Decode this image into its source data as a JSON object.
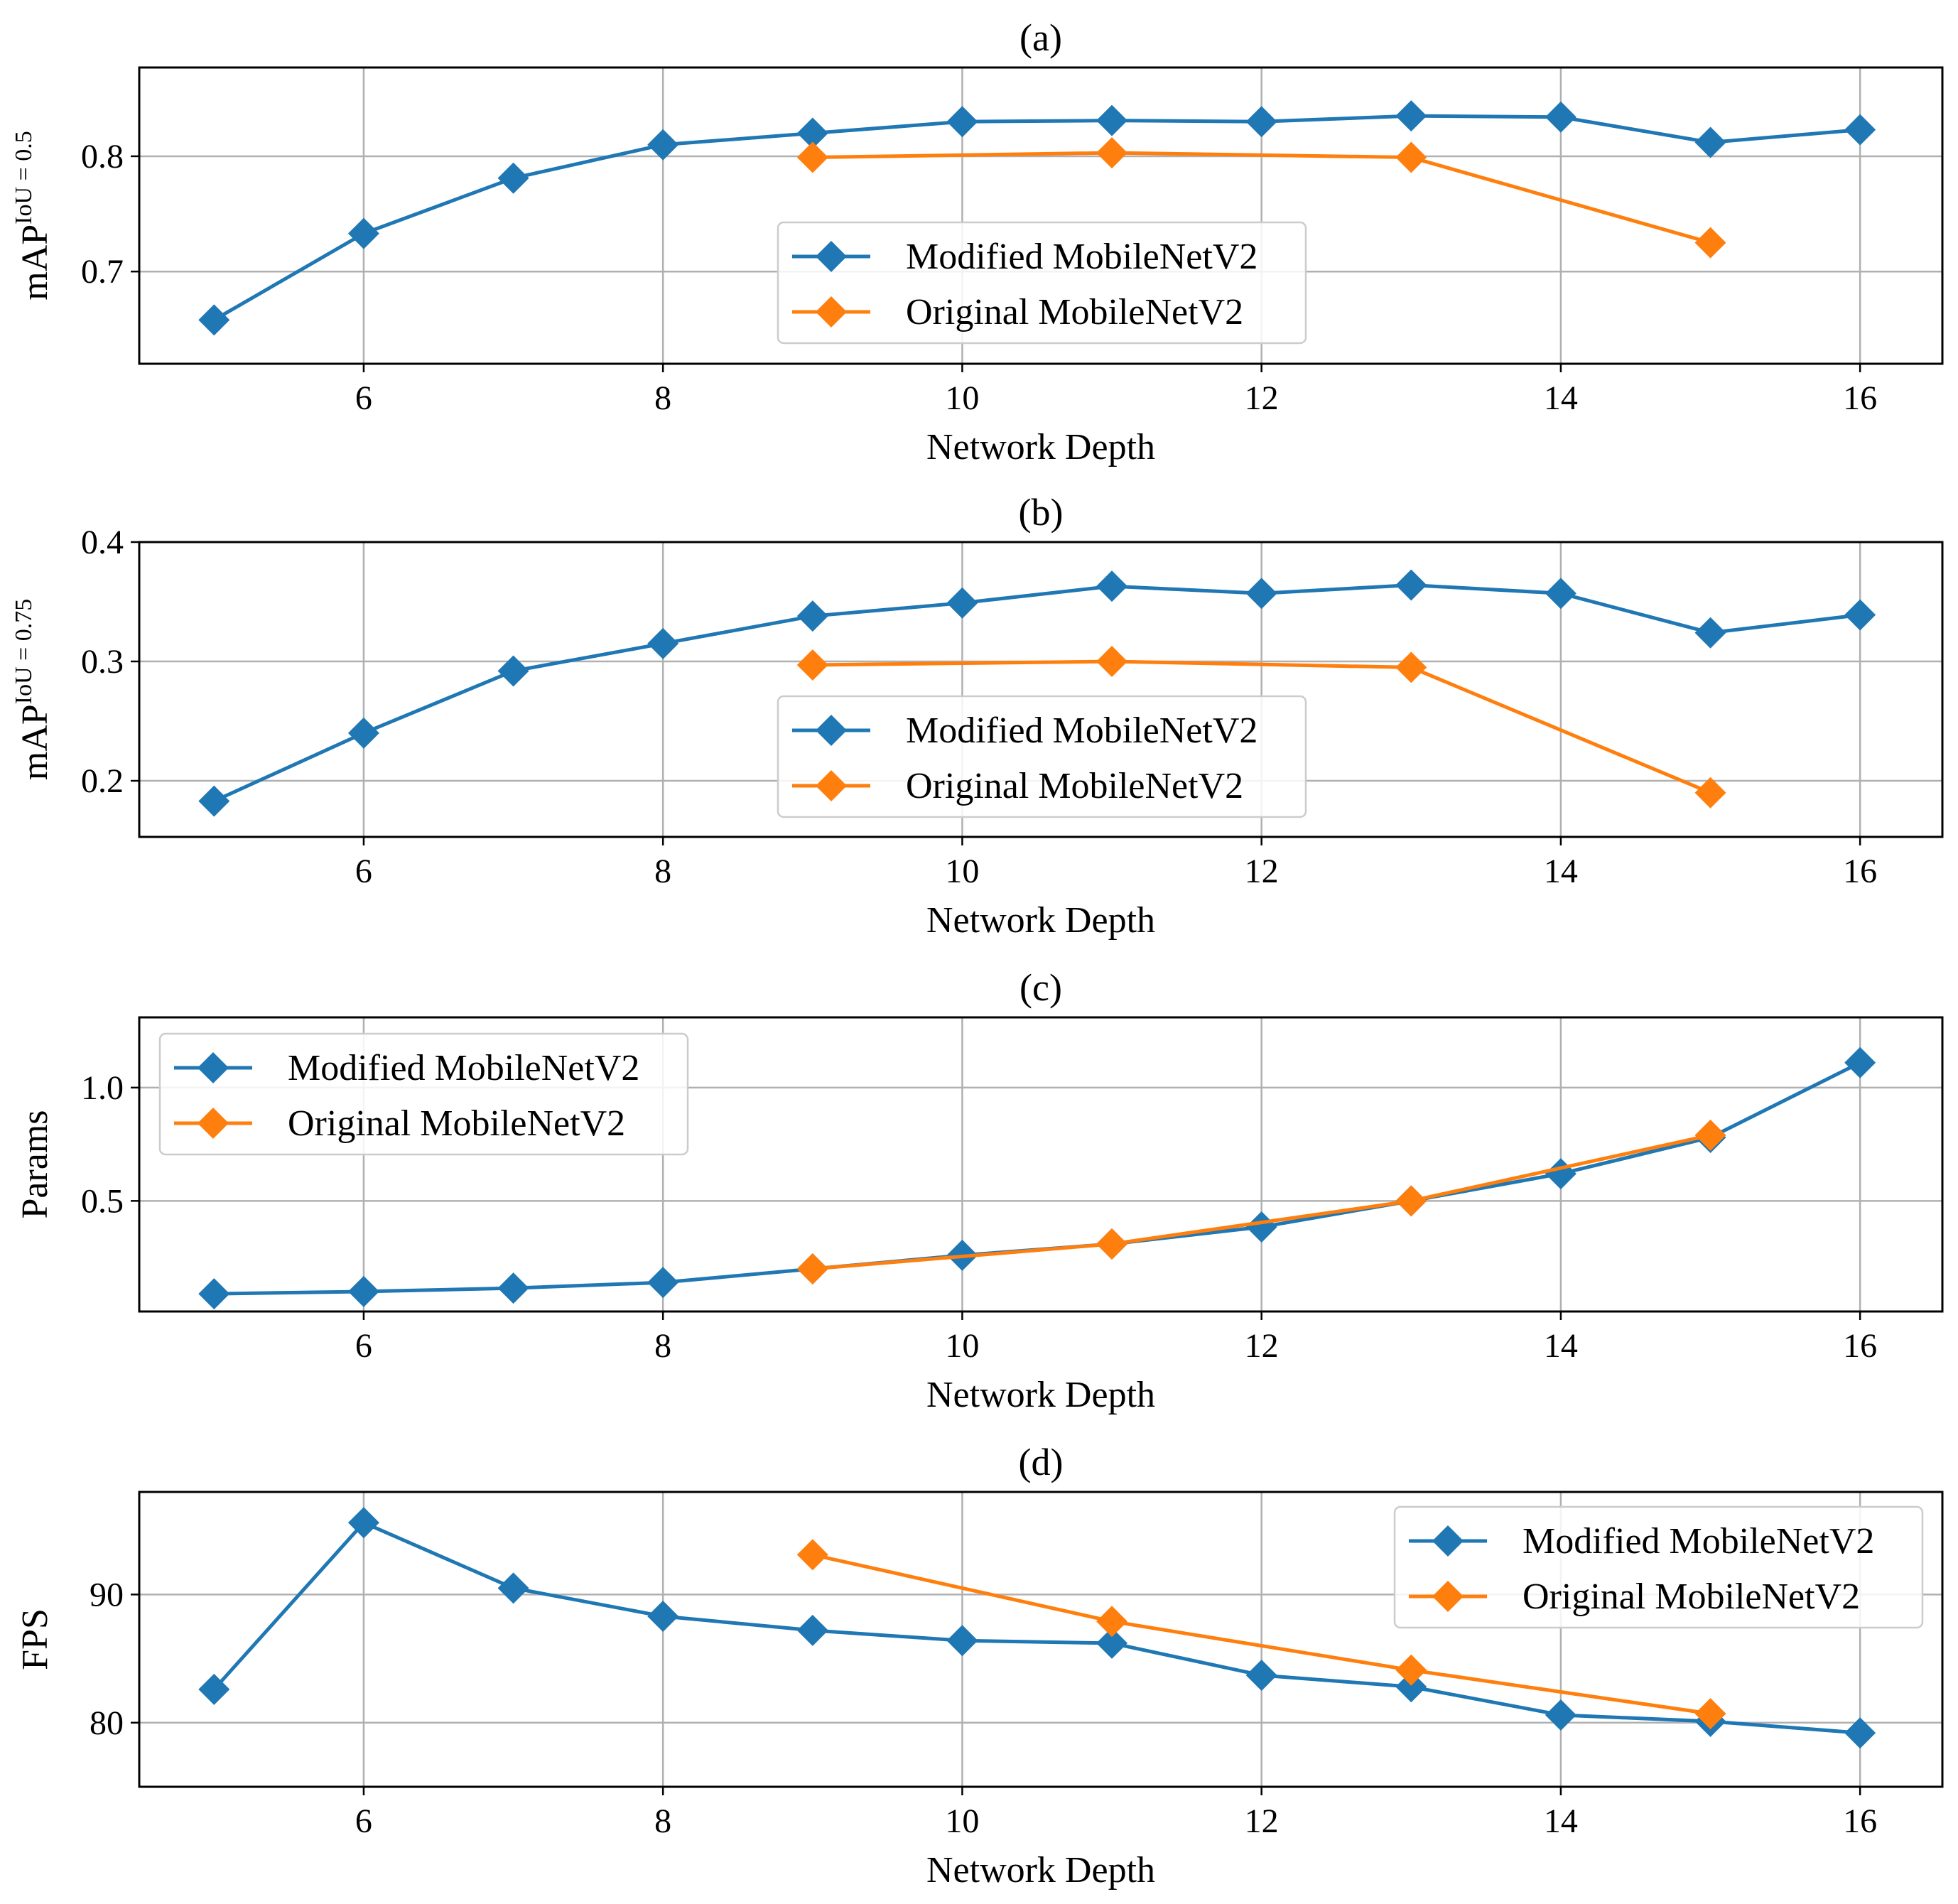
{
  "colors": {
    "modified": "#1f77b4",
    "original": "#ff7f0e"
  },
  "chart_data": [
    {
      "type": "line",
      "title": "(a)",
      "xlabel": "Network Depth",
      "ylabel_base": "mAP",
      "ylabel_sup": "IoU = 0.5",
      "xlim": [
        4.5,
        16.55
      ],
      "ylim": [
        0.62,
        0.877
      ],
      "xticks": [
        6,
        8,
        10,
        12,
        14,
        16
      ],
      "yticks": [
        0.7,
        0.8
      ],
      "ytick_labels": [
        "0.7",
        "0.8"
      ],
      "legend": "center",
      "series": [
        {
          "name": "Modified MobileNetV2",
          "x": [
            5,
            6,
            7,
            8,
            9,
            10,
            11,
            12,
            13,
            14,
            15,
            16
          ],
          "y": [
            0.658,
            0.733,
            0.781,
            0.81,
            0.82,
            0.83,
            0.831,
            0.83,
            0.835,
            0.834,
            0.812,
            0.823
          ]
        },
        {
          "name": "Original MobileNetV2",
          "x": [
            9,
            11,
            13,
            15
          ],
          "y": [
            0.799,
            0.803,
            0.799,
            0.725
          ]
        }
      ]
    },
    {
      "type": "line",
      "title": "(b)",
      "xlabel": "Network Depth",
      "ylabel_base": "mAP",
      "ylabel_sup": "IoU = 0.75",
      "xlim": [
        4.5,
        16.55
      ],
      "ylim": [
        0.153,
        0.4
      ],
      "xticks": [
        6,
        8,
        10,
        12,
        14,
        16
      ],
      "yticks": [
        0.2,
        0.3,
        0.4
      ],
      "ytick_labels": [
        "0.2",
        "0.3",
        "0.4"
      ],
      "legend": "center",
      "series": [
        {
          "name": "Modified MobileNetV2",
          "x": [
            5,
            6,
            7,
            8,
            9,
            10,
            11,
            12,
            13,
            14,
            15,
            16
          ],
          "y": [
            0.183,
            0.24,
            0.292,
            0.315,
            0.338,
            0.349,
            0.363,
            0.357,
            0.364,
            0.357,
            0.324,
            0.339
          ]
        },
        {
          "name": "Original MobileNetV2",
          "x": [
            9,
            11,
            13,
            15
          ],
          "y": [
            0.297,
            0.3,
            0.295,
            0.19
          ]
        }
      ]
    },
    {
      "type": "line",
      "title": "(c)",
      "xlabel": "Network Depth",
      "ylabel": "Params",
      "xlim": [
        4.5,
        16.55
      ],
      "ylim": [
        0.012,
        1.31
      ],
      "xticks": [
        6,
        8,
        10,
        12,
        14,
        16
      ],
      "yticks": [
        0.5,
        1.0
      ],
      "ytick_labels": [
        "0.5",
        "1.0"
      ],
      "legend": "upper left",
      "series": [
        {
          "name": "Modified MobileNetV2",
          "x": [
            5,
            6,
            7,
            8,
            9,
            10,
            11,
            12,
            13,
            14,
            15,
            16
          ],
          "y": [
            0.09,
            0.1,
            0.115,
            0.14,
            0.2,
            0.26,
            0.31,
            0.385,
            0.5,
            0.62,
            0.78,
            1.11
          ]
        },
        {
          "name": "Original MobileNetV2",
          "x": [
            9,
            11,
            13,
            15
          ],
          "y": [
            0.2,
            0.31,
            0.5,
            0.79
          ]
        }
      ]
    },
    {
      "type": "line",
      "title": "(d)",
      "xlabel": "Network Depth",
      "ylabel": "FPS",
      "xlim": [
        4.5,
        16.55
      ],
      "ylim": [
        75.0,
        98.0
      ],
      "xticks": [
        6,
        8,
        10,
        12,
        14,
        16
      ],
      "yticks": [
        80,
        90
      ],
      "ytick_labels": [
        "80",
        "90"
      ],
      "legend": "upper right",
      "series": [
        {
          "name": "Modified MobileNetV2",
          "x": [
            5,
            6,
            7,
            8,
            9,
            10,
            11,
            12,
            13,
            14,
            15,
            16
          ],
          "y": [
            82.6,
            95.6,
            90.5,
            88.3,
            87.2,
            86.4,
            86.2,
            83.7,
            82.8,
            80.6,
            80.1,
            79.2
          ]
        },
        {
          "name": "Original MobileNetV2",
          "x": [
            9,
            11,
            13,
            15
          ],
          "y": [
            93.1,
            87.9,
            84.1,
            80.7
          ]
        }
      ]
    }
  ]
}
